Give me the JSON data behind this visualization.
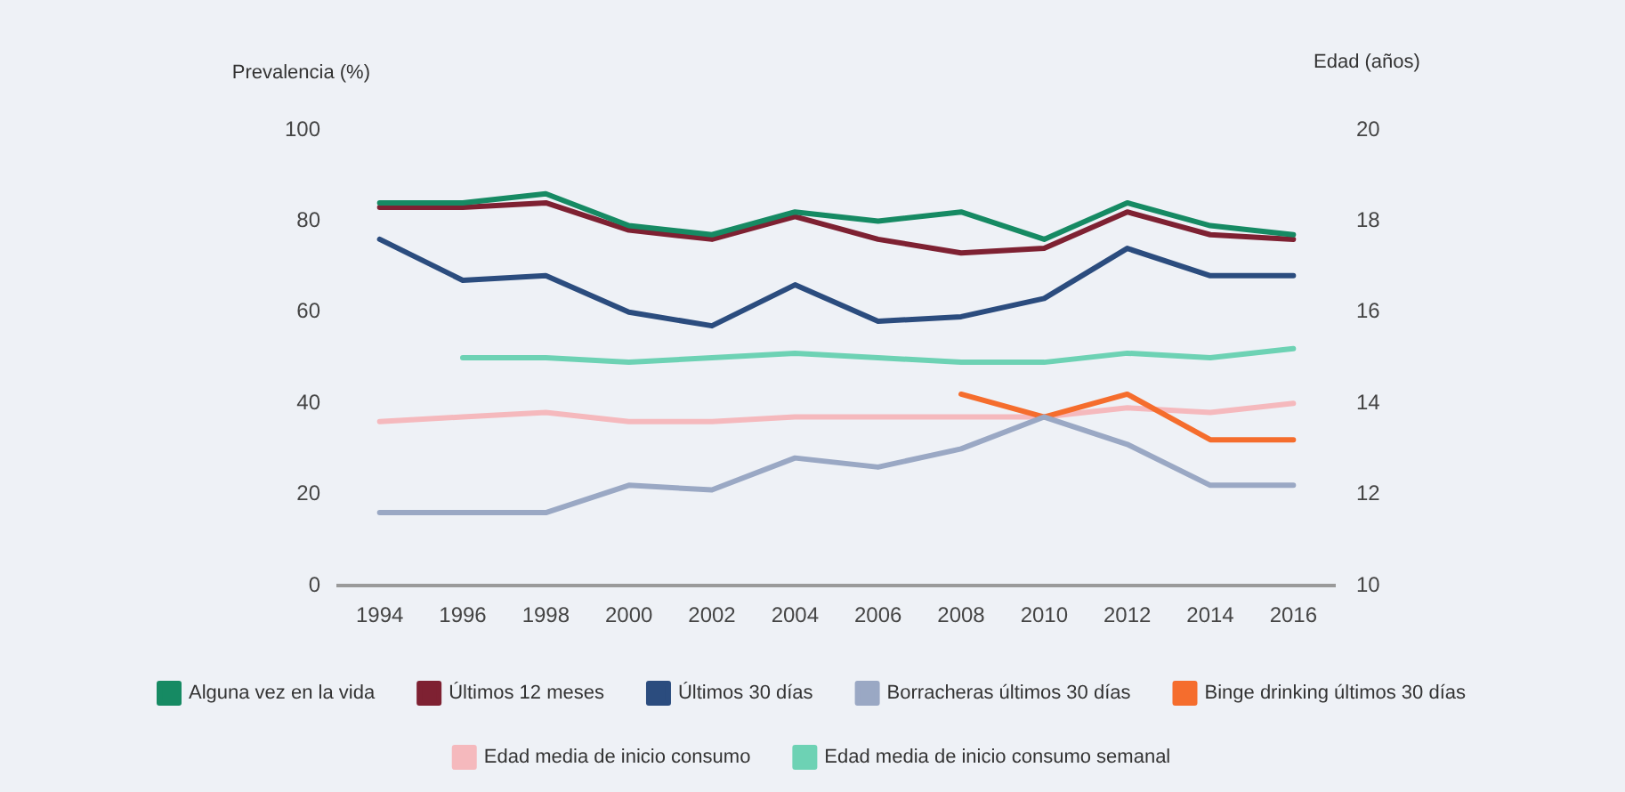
{
  "chart_data": {
    "type": "line",
    "ylabel": "Prevalencia (%)",
    "y2label": "Edad (años)",
    "categories": [
      "1994",
      "1996",
      "1998",
      "2000",
      "2002",
      "2004",
      "2006",
      "2008",
      "2010",
      "2012",
      "2014",
      "2016"
    ],
    "ylim": [
      0,
      100
    ],
    "yticks": [
      0,
      20,
      40,
      60,
      80,
      100
    ],
    "y2lim": [
      10,
      20
    ],
    "y2ticks": [
      10,
      12,
      14,
      16,
      18,
      20
    ],
    "grid": false,
    "legend": "bottom",
    "series": [
      {
        "name": "Alguna vez en la vida",
        "color": "#168a63",
        "values": [
          84,
          84,
          86,
          79,
          77,
          82,
          80,
          82,
          76,
          84,
          79,
          77
        ]
      },
      {
        "name": "Últimos 12 meses",
        "color": "#7e2132",
        "values": [
          83,
          83,
          84,
          78,
          76,
          81,
          76,
          73,
          74,
          82,
          77,
          76
        ]
      },
      {
        "name": "Últimos 30 días",
        "color": "#2b4c7e",
        "values": [
          76,
          67,
          68,
          60,
          57,
          66,
          58,
          59,
          63,
          74,
          68,
          68
        ]
      },
      {
        "name": "Borracheras últimos 30 días",
        "color": "#9aa8c4",
        "values": [
          16,
          16,
          16,
          22,
          21,
          28,
          26,
          30,
          37,
          31,
          22,
          22
        ]
      },
      {
        "name": "Binge drinking últimos 30 días",
        "color": "#f56d2d",
        "values": [
          null,
          null,
          null,
          null,
          null,
          null,
          null,
          42,
          37,
          42,
          32,
          32
        ]
      },
      {
        "name": "Edad media de inicio consumo",
        "color": "#f5b9bd",
        "axis": "y2",
        "values": [
          13.6,
          13.7,
          13.8,
          13.6,
          13.6,
          13.7,
          13.7,
          13.7,
          13.7,
          13.9,
          13.8,
          14.0
        ]
      },
      {
        "name": "Edad media de inicio consumo semanal",
        "color": "#6dd2b4",
        "axis": "y2",
        "values": [
          null,
          15.0,
          15.0,
          14.9,
          15.0,
          15.1,
          15.0,
          14.9,
          14.9,
          15.1,
          15.0,
          15.2
        ]
      }
    ]
  }
}
